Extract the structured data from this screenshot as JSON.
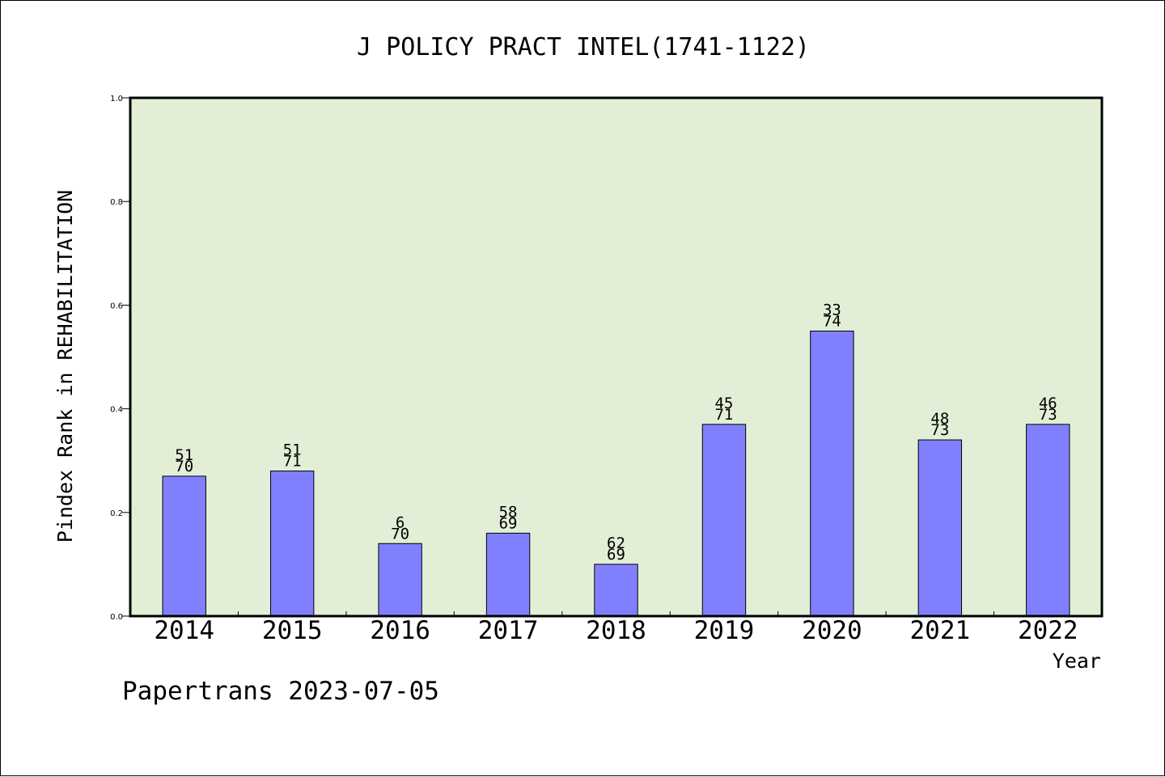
{
  "chart_data": {
    "type": "bar",
    "title": "J POLICY PRACT INTEL(1741-1122)",
    "xlabel": "Year",
    "ylabel": "Pindex Rank in REHABILITATION",
    "ylim": [
      0,
      1.0
    ],
    "yticks": [
      "0.0",
      "0.2",
      "0.4",
      "0.6",
      "0.8",
      "1.0"
    ],
    "grid": false,
    "plot_background": "#e2efd6",
    "bar_color": "#8080ff",
    "categories": [
      "2014",
      "2015",
      "2016",
      "2017",
      "2018",
      "2019",
      "2020",
      "2021",
      "2022"
    ],
    "values": [
      0.27,
      0.28,
      0.14,
      0.16,
      0.1,
      0.37,
      0.55,
      0.34,
      0.37
    ],
    "label_top": [
      "51",
      "51",
      "6",
      "58",
      "62",
      "45",
      "33",
      "48",
      "46"
    ],
    "label_bottom": [
      "70",
      "71",
      "70",
      "69",
      "69",
      "71",
      "74",
      "73",
      "73"
    ]
  },
  "footer": {
    "credit": "Papertrans 2023-07-05"
  }
}
